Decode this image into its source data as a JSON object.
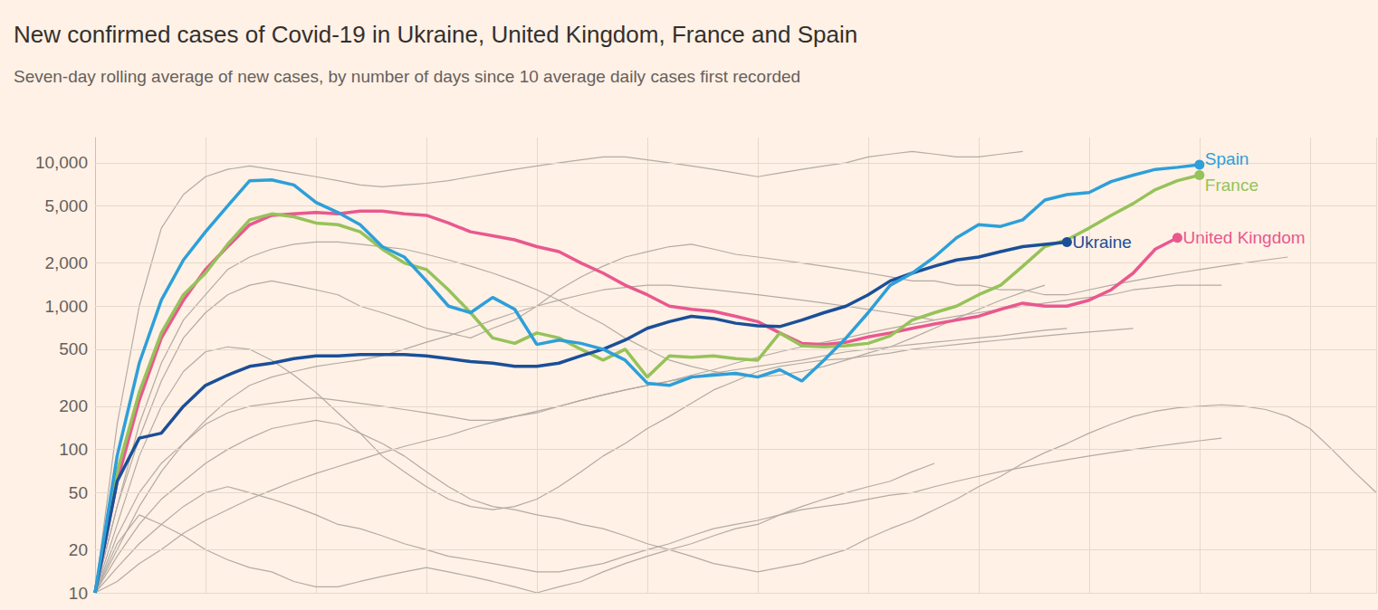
{
  "chart_data": {
    "type": "line",
    "title": "New confirmed cases of Covid-19 in Ukraine, United Kingdom, France and Spain",
    "subtitle": "Seven-day rolling average of new cases, by number of days since 10 average daily cases first recorded",
    "log": "y",
    "grid": true,
    "tick_labels": "y",
    "xlim": [
      0,
      232
    ],
    "xticks": [
      0,
      20,
      40,
      60,
      80,
      100,
      120,
      140,
      160,
      180,
      200,
      220
    ],
    "ylim": [
      10,
      15000
    ],
    "yticks": [
      10,
      20,
      50,
      100,
      200,
      500,
      {
        "value": 1000,
        "label": "1,000"
      },
      {
        "value": 2000,
        "label": "2,000"
      },
      {
        "value": 5000,
        "label": "5,000"
      },
      {
        "value": 10000,
        "label": "10,000"
      }
    ],
    "x": [
      0,
      4,
      8,
      12,
      16,
      20,
      24,
      28,
      32,
      36,
      40,
      44,
      48,
      52,
      56,
      60,
      64,
      68,
      72,
      76,
      80,
      84,
      88,
      92,
      96,
      100,
      104,
      108,
      112,
      116,
      120,
      124,
      128,
      132,
      136,
      140,
      144,
      148,
      152,
      156,
      160,
      164,
      168,
      172,
      176,
      180,
      184,
      188,
      192,
      196,
      200,
      204,
      208,
      212,
      216,
      220,
      224,
      228,
      232
    ],
    "series": [
      {
        "color": "#b3aba4",
        "values": [
          10,
          150,
          1000,
          3500,
          6000,
          8000,
          9000,
          9500,
          9000,
          8500,
          8000,
          7500,
          7000,
          6800,
          7000,
          7200,
          7500,
          8000,
          8500,
          9000,
          9500,
          10000,
          10500,
          11000,
          11000,
          10500,
          10000,
          9500,
          9000,
          8500,
          8000,
          8500,
          9000,
          9500,
          10000,
          11000,
          11500,
          12000,
          11500,
          11000,
          11000,
          11500,
          12000,
          null,
          null,
          null,
          null,
          null,
          null,
          null,
          null,
          null,
          null,
          null,
          null,
          null,
          null,
          null,
          null
        ]
      },
      {
        "color": "#b3aba4",
        "values": [
          10,
          40,
          120,
          300,
          600,
          900,
          1200,
          1400,
          1500,
          1400,
          1300,
          1200,
          1000,
          900,
          800,
          700,
          650,
          600,
          700,
          800,
          1000,
          1300,
          1600,
          1900,
          2200,
          2400,
          2600,
          2700,
          2500,
          2300,
          2200,
          2100,
          2000,
          1900,
          1800,
          1700,
          1600,
          1500,
          1500,
          1400,
          1400,
          1300,
          1300,
          1200,
          1200,
          1300,
          1400,
          1500,
          1600,
          1700,
          1800,
          1900,
          2000,
          2100,
          2200,
          null,
          null,
          null,
          null
        ]
      },
      {
        "color": "#b3aba4",
        "values": [
          10,
          25,
          50,
          80,
          110,
          150,
          180,
          200,
          210,
          220,
          230,
          220,
          210,
          200,
          190,
          180,
          170,
          160,
          160,
          170,
          180,
          200,
          220,
          240,
          260,
          280,
          300,
          320,
          340,
          360,
          380,
          400,
          420,
          450,
          480,
          500,
          520,
          540,
          560,
          580,
          600,
          620,
          650,
          680,
          700,
          null,
          null,
          null,
          null,
          null,
          null,
          null,
          null,
          null,
          null,
          null,
          null,
          null,
          null
        ]
      },
      {
        "color": "#b3aba4",
        "values": [
          10,
          30,
          90,
          200,
          350,
          480,
          520,
          500,
          420,
          330,
          250,
          180,
          130,
          90,
          70,
          55,
          45,
          40,
          38,
          40,
          45,
          55,
          70,
          90,
          110,
          140,
          170,
          210,
          260,
          300,
          350,
          380,
          400,
          420,
          430,
          450,
          470,
          500,
          520,
          540,
          560,
          580,
          600,
          620,
          640,
          660,
          680,
          700,
          null,
          null,
          null,
          null,
          null,
          null,
          null,
          null,
          null,
          null,
          null
        ]
      },
      {
        "color": "#b3aba4",
        "values": [
          10,
          18,
          30,
          45,
          60,
          80,
          100,
          120,
          140,
          150,
          160,
          150,
          130,
          110,
          90,
          70,
          55,
          45,
          40,
          38,
          35,
          33,
          30,
          28,
          25,
          22,
          20,
          18,
          16,
          15,
          14,
          15,
          16,
          18,
          20,
          24,
          28,
          32,
          38,
          45,
          55,
          65,
          80,
          95,
          110,
          130,
          150,
          170,
          185,
          195,
          200,
          205,
          200,
          190,
          170,
          140,
          100,
          70,
          50
        ]
      },
      {
        "color": "#b3aba4",
        "values": [
          10,
          15,
          22,
          30,
          40,
          50,
          55,
          50,
          45,
          40,
          35,
          30,
          28,
          25,
          22,
          20,
          18,
          17,
          16,
          15,
          14,
          14,
          15,
          16,
          18,
          20,
          22,
          25,
          28,
          30,
          32,
          35,
          38,
          40,
          42,
          45,
          48,
          50,
          55,
          60,
          65,
          70,
          75,
          80,
          85,
          90,
          95,
          100,
          105,
          110,
          115,
          120,
          null,
          null,
          null,
          null,
          null,
          null,
          null
        ]
      },
      {
        "color": "#b3aba4",
        "values": [
          10,
          40,
          150,
          400,
          800,
          1200,
          1800,
          2200,
          2500,
          2700,
          2800,
          2800,
          2700,
          2600,
          2500,
          2300,
          2100,
          1900,
          1700,
          1500,
          1300,
          1100,
          900,
          750,
          600,
          500,
          420,
          380,
          350,
          330,
          320,
          330,
          350,
          380,
          420,
          470,
          520,
          600,
          700,
          820,
          950,
          1100,
          1250,
          1400,
          null,
          null,
          null,
          null,
          null,
          null,
          null,
          null,
          null,
          null,
          null,
          null,
          null,
          null,
          null
        ]
      },
      {
        "color": "#b3aba4",
        "values": [
          10,
          20,
          40,
          70,
          110,
          160,
          220,
          280,
          320,
          350,
          380,
          400,
          420,
          450,
          500,
          560,
          620,
          700,
          800,
          900,
          1000,
          1100,
          1200,
          1300,
          1350,
          1400,
          1400,
          1350,
          1300,
          1250,
          1200,
          1150,
          1100,
          1050,
          1000,
          950,
          900,
          850,
          800,
          null,
          null,
          null,
          null,
          null,
          null,
          null,
          null,
          null,
          null,
          null,
          null,
          null,
          null,
          null,
          null,
          null,
          null,
          null,
          null
        ]
      },
      {
        "color": "#b3aba4",
        "values": [
          10,
          12,
          16,
          20,
          26,
          32,
          38,
          45,
          52,
          60,
          68,
          76,
          85,
          95,
          105,
          115,
          125,
          140,
          155,
          170,
          185,
          200,
          220,
          240,
          260,
          280,
          300,
          330,
          360,
          400,
          440,
          480,
          520,
          560,
          600,
          650,
          700,
          750,
          800,
          850,
          900,
          950,
          1000,
          1050,
          1100,
          1150,
          1200,
          1300,
          1350,
          1400,
          1400,
          1400,
          null,
          null,
          null,
          null,
          null,
          null,
          null
        ]
      },
      {
        "color": "#b3aba4",
        "values": [
          10,
          22,
          35,
          30,
          25,
          20,
          17,
          15,
          14,
          12,
          11,
          11,
          12,
          13,
          14,
          15,
          14,
          13,
          12,
          11,
          10,
          11,
          12,
          14,
          16,
          18,
          20,
          22,
          25,
          28,
          30,
          35,
          40,
          45,
          50,
          55,
          60,
          70,
          80,
          null,
          null,
          null,
          null,
          null,
          null,
          null,
          null,
          null,
          null,
          null,
          null,
          null,
          null,
          null,
          null,
          null,
          null,
          null,
          null
        ]
      },
      {
        "name": "United Kingdom",
        "color": "#e9588f",
        "values": [
          10,
          60,
          220,
          600,
          1100,
          1800,
          2600,
          3700,
          4300,
          4400,
          4500,
          4400,
          4600,
          4600,
          4400,
          4300,
          3800,
          3300,
          3100,
          2900,
          2600,
          2400,
          2000,
          1700,
          1400,
          1200,
          1000,
          950,
          920,
          850,
          780,
          650,
          550,
          540,
          560,
          610,
          650,
          700,
          750,
          800,
          850,
          950,
          1050,
          1000,
          1000,
          1100,
          1300,
          1700,
          2500,
          3000,
          null,
          null,
          null,
          null,
          null,
          null,
          null,
          null,
          null
        ]
      },
      {
        "name": "France",
        "color": "#96c25a",
        "values": [
          10,
          70,
          250,
          650,
          1200,
          1700,
          2700,
          4000,
          4400,
          4200,
          3800,
          3700,
          3300,
          2500,
          2000,
          1800,
          1300,
          900,
          600,
          550,
          650,
          600,
          500,
          420,
          500,
          320,
          450,
          440,
          450,
          430,
          420,
          650,
          530,
          520,
          530,
          550,
          620,
          800,
          900,
          1000,
          1200,
          1400,
          1900,
          2600,
          2900,
          3500,
          4300,
          5200,
          6500,
          7500,
          8200,
          null,
          null,
          null,
          null,
          null,
          null,
          null,
          null
        ]
      },
      {
        "name": "Ukraine",
        "color": "#1a4f98",
        "values": [
          10,
          60,
          120,
          130,
          200,
          280,
          330,
          380,
          400,
          430,
          450,
          450,
          460,
          460,
          460,
          450,
          430,
          410,
          400,
          380,
          380,
          400,
          450,
          500,
          580,
          700,
          780,
          850,
          820,
          760,
          730,
          720,
          800,
          900,
          1000,
          1200,
          1500,
          1700,
          1900,
          2100,
          2200,
          2400,
          2600,
          2700,
          2800,
          null,
          null,
          null,
          null,
          null,
          null,
          null,
          null,
          null,
          null,
          null,
          null,
          null,
          null
        ]
      },
      {
        "name": "Spain",
        "color": "#2d9fd9",
        "values": [
          10,
          90,
          400,
          1100,
          2100,
          3300,
          5000,
          7500,
          7600,
          7000,
          5300,
          4500,
          3700,
          2600,
          2200,
          1500,
          1000,
          900,
          1150,
          950,
          540,
          580,
          550,
          500,
          420,
          290,
          280,
          320,
          330,
          340,
          320,
          360,
          300,
          420,
          600,
          900,
          1400,
          1700,
          2200,
          3000,
          3700,
          3600,
          4000,
          5500,
          6000,
          6200,
          7400,
          8200,
          9000,
          9300,
          9700,
          null,
          null,
          null,
          null,
          null,
          null,
          null,
          null
        ]
      }
    ]
  }
}
